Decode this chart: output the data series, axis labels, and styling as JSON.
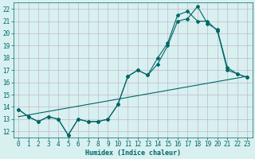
{
  "title": "",
  "xlabel": "Humidex (Indice chaleur)",
  "bg_color": "#d8f0f0",
  "grid_color": "#c0b8c8",
  "line_color": "#006666",
  "xlim": [
    -0.5,
    23.5
  ],
  "ylim": [
    11.5,
    22.5
  ],
  "xticks": [
    0,
    1,
    2,
    3,
    4,
    5,
    6,
    7,
    8,
    9,
    10,
    11,
    12,
    13,
    14,
    15,
    16,
    17,
    18,
    19,
    20,
    21,
    22,
    23
  ],
  "yticks": [
    12,
    13,
    14,
    15,
    16,
    17,
    18,
    19,
    20,
    21,
    22
  ],
  "line1_x": [
    0,
    1,
    2,
    3,
    4,
    5,
    6,
    7,
    8,
    9,
    10,
    11,
    12,
    13,
    14,
    15,
    16,
    17,
    18,
    19,
    20,
    21,
    22,
    23
  ],
  "line1_y": [
    13.8,
    13.2,
    12.8,
    13.2,
    13.0,
    11.7,
    13.0,
    12.8,
    12.8,
    13.0,
    14.2,
    16.5,
    17.0,
    16.6,
    17.5,
    19.0,
    21.0,
    21.2,
    22.2,
    20.8,
    20.3,
    17.2,
    16.7,
    16.4
  ],
  "line2_x": [
    0,
    1,
    2,
    3,
    4,
    5,
    6,
    7,
    8,
    9,
    10,
    11,
    12,
    13,
    14,
    15,
    16,
    17,
    18,
    19,
    20,
    21,
    22,
    23
  ],
  "line2_y": [
    13.8,
    13.2,
    12.8,
    13.2,
    13.0,
    11.7,
    13.0,
    12.8,
    12.8,
    13.0,
    14.2,
    16.5,
    17.0,
    16.6,
    18.0,
    19.2,
    21.5,
    21.8,
    21.0,
    21.0,
    20.2,
    17.0,
    16.7,
    16.4
  ],
  "line3_x": [
    0,
    23
  ],
  "line3_y": [
    13.2,
    16.5
  ],
  "marker": "D",
  "markersize": 2.0,
  "linewidth": 0.8,
  "tick_fontsize": 5.5,
  "xlabel_fontsize": 6.0
}
